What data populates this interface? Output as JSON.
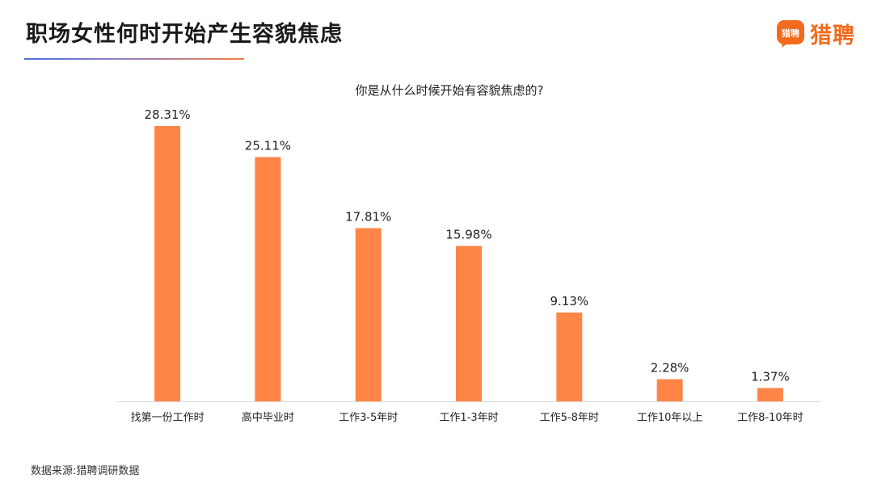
{
  "header": {
    "title": "职场女性何时开始产生容貌焦虑",
    "logo_badge_text": "猎聘",
    "logo_text": "猎聘"
  },
  "colors": {
    "bar": "#ff8547",
    "brand": "#f26b1d",
    "axis": "#d9d9d9",
    "text": "#222222"
  },
  "chart_data": {
    "type": "bar",
    "title": "你是从什么时候开始有容貌焦虑的?",
    "categories": [
      "找第一份工作时",
      "高中毕业时",
      "工作3-5年时",
      "工作1-3年时",
      "工作5-8年时",
      "工作10年以上",
      "工作8-10年时"
    ],
    "values": [
      28.31,
      25.11,
      17.81,
      15.98,
      9.13,
      2.28,
      1.37
    ],
    "value_labels": [
      "28.31%",
      "25.11%",
      "17.81%",
      "15.98%",
      "9.13%",
      "2.28%",
      "1.37%"
    ],
    "unit": "%",
    "xlabel": "",
    "ylabel": "",
    "ylim": [
      0,
      30
    ],
    "grid": false,
    "legend": "none"
  },
  "footer": {
    "source": "数据来源:猎聘调研数据"
  }
}
